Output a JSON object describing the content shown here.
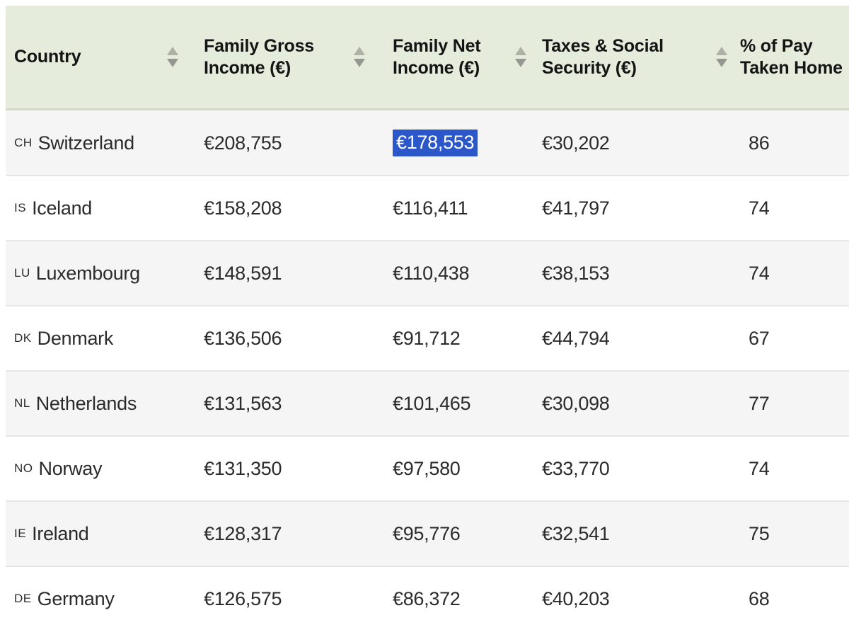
{
  "header": {
    "columns": {
      "country": {
        "line1": "Country",
        "line2": "",
        "sortable": true
      },
      "gross": {
        "line1": "Family Gross",
        "line2": "Income (€)",
        "sortable": true
      },
      "net": {
        "line1": "Family Net",
        "line2": "Income (€)",
        "sortable": true
      },
      "taxes": {
        "line1": "Taxes & Social",
        "line2": "Security (€)",
        "sortable": true
      },
      "pct": {
        "line1": "% of Pay",
        "line2": "Taken Home",
        "sortable": false
      }
    }
  },
  "rows": [
    {
      "code": "CH",
      "country": "Switzerland",
      "gross": "€208,755",
      "net": "€178,553",
      "taxes": "€30,202",
      "pct": "86"
    },
    {
      "code": "IS",
      "country": "Iceland",
      "gross": "€158,208",
      "net": "€116,411",
      "taxes": "€41,797",
      "pct": "74"
    },
    {
      "code": "LU",
      "country": "Luxembourg",
      "gross": "€148,591",
      "net": "€110,438",
      "taxes": "€38,153",
      "pct": "74"
    },
    {
      "code": "DK",
      "country": "Denmark",
      "gross": "€136,506",
      "net": "€91,712",
      "taxes": "€44,794",
      "pct": "67"
    },
    {
      "code": "NL",
      "country": "Netherlands",
      "gross": "€131,563",
      "net": "€101,465",
      "taxes": "€30,098",
      "pct": "77"
    },
    {
      "code": "NO",
      "country": "Norway",
      "gross": "€131,350",
      "net": "€97,580",
      "taxes": "€33,770",
      "pct": "74"
    },
    {
      "code": "IE",
      "country": "Ireland",
      "gross": "€128,317",
      "net": "€95,776",
      "taxes": "€32,541",
      "pct": "75"
    },
    {
      "code": "DE",
      "country": "Germany",
      "gross": "€126,575",
      "net": "€86,372",
      "taxes": "€40,203",
      "pct": "68"
    }
  ],
  "selection": {
    "row_index": 0,
    "column": "net",
    "value": "€178,553"
  },
  "icons": {
    "sort_up": "sort-ascending-triangle",
    "sort_down": "sort-descending-triangle"
  },
  "colors": {
    "header_bg": "#e5ecdb",
    "row_alt_bg": "#f5f5f5",
    "row_separator": "#e6e6e6",
    "selection_bg": "#2b57c9",
    "selection_text": "#ffffff",
    "sort_arrow_up": "#adb1a8",
    "sort_arrow_down": "#949890",
    "header_text": "#141414",
    "body_text": "#2b2b2b"
  }
}
